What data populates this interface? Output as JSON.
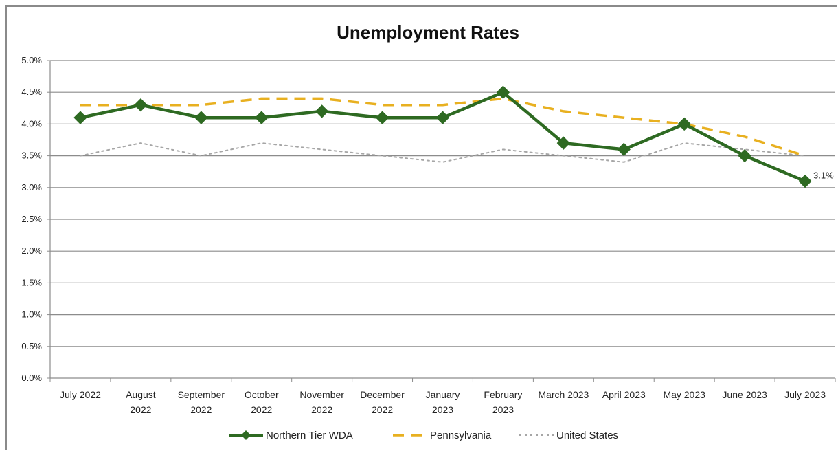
{
  "chart_data": {
    "type": "line",
    "title": "Unemployment Rates",
    "xlabel": "",
    "ylabel": "",
    "ylim": [
      0,
      5.0
    ],
    "yticks": [
      "0.0%",
      "0.5%",
      "1.0%",
      "1.5%",
      "2.0%",
      "2.5%",
      "3.0%",
      "3.5%",
      "4.0%",
      "4.5%",
      "5.0%"
    ],
    "categories": [
      [
        "July 2022"
      ],
      [
        "August",
        "2022"
      ],
      [
        "September",
        "2022"
      ],
      [
        "October",
        "2022"
      ],
      [
        "November",
        "2022"
      ],
      [
        "December",
        "2022"
      ],
      [
        "January",
        "2023"
      ],
      [
        "February",
        "2023"
      ],
      [
        "March 2023"
      ],
      [
        "April 2023"
      ],
      [
        "May 2023"
      ],
      [
        "June 2023"
      ],
      [
        "July 2023"
      ]
    ],
    "grid": true,
    "legend_position": "bottom",
    "series": [
      {
        "name": "Northern Tier WDA",
        "color": "#2e6a22",
        "style": "solid-diamond",
        "values": [
          4.1,
          4.3,
          4.1,
          4.1,
          4.2,
          4.1,
          4.1,
          4.5,
          3.7,
          3.6,
          4.0,
          3.5,
          3.1
        ]
      },
      {
        "name": "Pennsylvania",
        "color": "#e8b020",
        "style": "dashed",
        "values": [
          4.3,
          4.3,
          4.3,
          4.4,
          4.4,
          4.3,
          4.3,
          4.4,
          4.2,
          4.1,
          4.0,
          3.8,
          3.5
        ]
      },
      {
        "name": "United States",
        "color": "#a6a6a6",
        "style": "dotted",
        "values": [
          3.5,
          3.7,
          3.5,
          3.7,
          3.6,
          3.5,
          3.4,
          3.6,
          3.5,
          3.4,
          3.7,
          3.6,
          3.5
        ]
      }
    ],
    "annotations": [
      {
        "series": 0,
        "index": 12,
        "text": "3.1%"
      }
    ]
  }
}
